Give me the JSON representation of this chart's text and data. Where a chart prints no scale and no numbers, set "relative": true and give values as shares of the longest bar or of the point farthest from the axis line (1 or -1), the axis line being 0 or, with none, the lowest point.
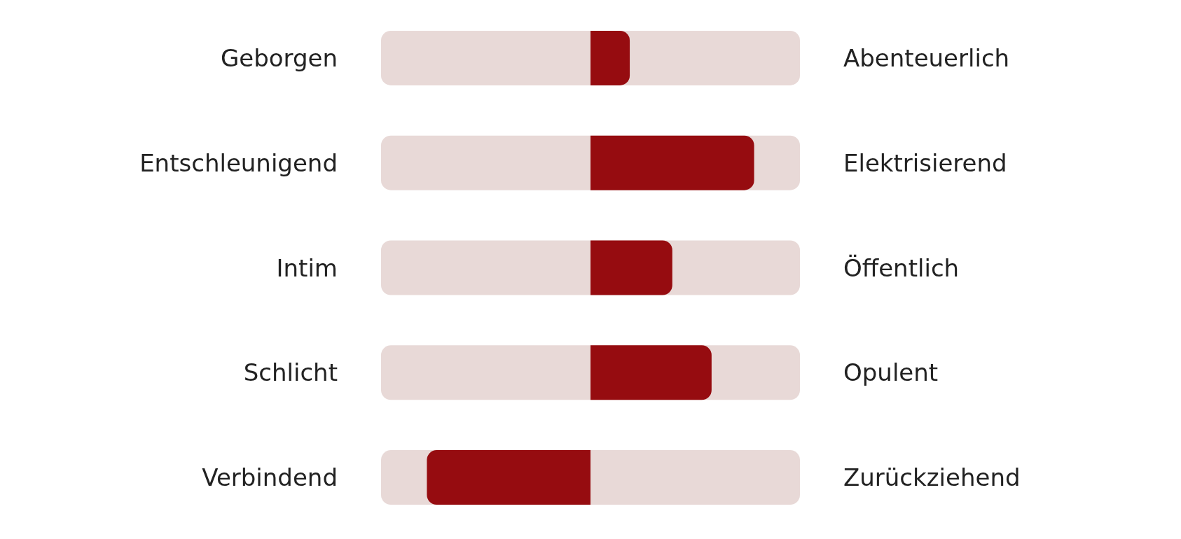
{
  "chart_data": {
    "type": "bar",
    "orientation": "horizontal",
    "relative": true,
    "categories": [
      "Geborgen",
      "Entschleunigend",
      "Intim",
      "Schlicht",
      "Verbindend"
    ],
    "y2_categories": [
      "Abenteuerlich",
      "Elektrisierend",
      "Öffentlich",
      "Opulent",
      "Zurückziehend"
    ],
    "values": [
      0.24,
      1,
      0.5,
      0.74,
      -1
    ],
    "color": "#960c10"
  }
}
